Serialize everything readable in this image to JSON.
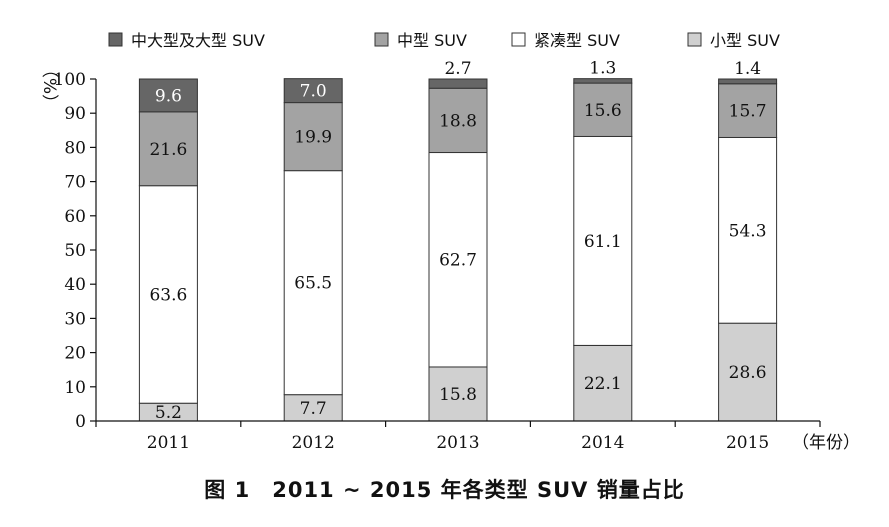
{
  "caption": "图 1　2011 ~ 2015 年各类型 SUV 销量占比",
  "chart_data": {
    "type": "bar",
    "stacked": true,
    "categories": [
      "2011",
      "2012",
      "2013",
      "2014",
      "2015"
    ],
    "xlabel": "（年份）",
    "ylabel": "（%）",
    "ylim": [
      0,
      100
    ],
    "yticks": [
      0,
      10,
      20,
      30,
      40,
      50,
      60,
      70,
      80,
      90,
      100
    ],
    "legend_position": "top",
    "series": [
      {
        "name": "小型 SUV",
        "values": [
          5.2,
          7.7,
          15.8,
          22.1,
          28.6
        ],
        "color": "#d0d0d0",
        "label_color": "#111111"
      },
      {
        "name": "紧凑型 SUV",
        "values": [
          63.6,
          65.5,
          62.7,
          61.1,
          54.3
        ],
        "color": "#ffffff",
        "label_color": "#111111"
      },
      {
        "name": "中型 SUV",
        "values": [
          21.6,
          19.9,
          18.8,
          15.6,
          15.7
        ],
        "color": "#a3a3a3",
        "label_color": "#111111"
      },
      {
        "name": "中大型及大型 SUV",
        "values": [
          9.6,
          7.0,
          2.7,
          1.3,
          1.4
        ],
        "color": "#666666",
        "label_color": "#ffffff"
      }
    ],
    "legend_order": [
      "中大型及大型 SUV",
      "中型 SUV",
      "紧凑型 SUV",
      "小型 SUV"
    ]
  }
}
